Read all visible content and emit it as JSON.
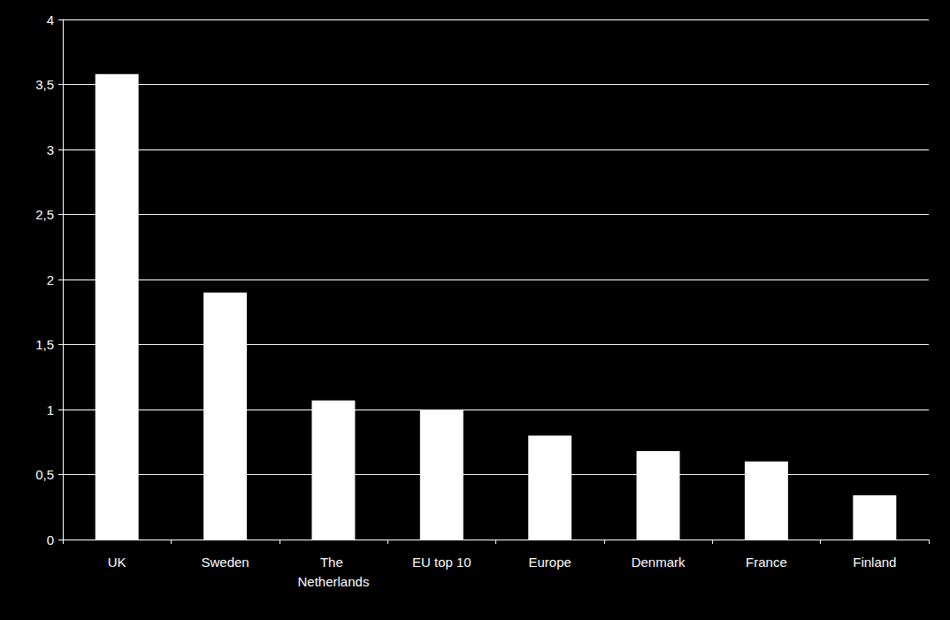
{
  "chart_data": {
    "type": "bar",
    "categories": [
      "UK",
      "Sweden",
      "The Netherlands",
      "EU top 10",
      "Europe",
      "Denmark",
      "France",
      "Finland"
    ],
    "values": [
      3.58,
      1.9,
      1.07,
      1.0,
      0.8,
      0.68,
      0.6,
      0.34
    ],
    "color": "#ffffff",
    "ylim": [
      0,
      4
    ],
    "yticks": [
      0,
      {
        "value": 0.5,
        "label": "0,5"
      },
      1,
      {
        "value": 1.5,
        "label": "1,5"
      },
      2,
      {
        "value": 2.5,
        "label": "2,5"
      },
      3,
      {
        "value": 3.5,
        "label": "3,5"
      },
      4
    ],
    "grid": true
  }
}
